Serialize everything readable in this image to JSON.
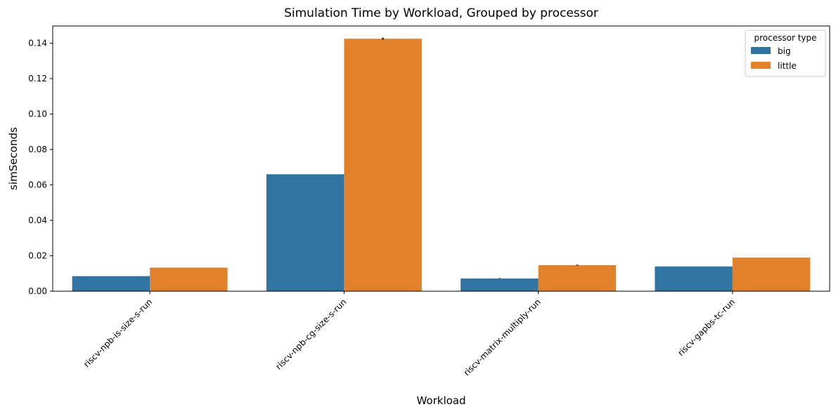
{
  "chart_data": {
    "type": "bar",
    "title": "Simulation Time by Workload, Grouped by processor",
    "xlabel": "Workload",
    "ylabel": "simSeconds",
    "categories": [
      "riscv-npb-is-size-s-run",
      "riscv-npb-cg-size-s-run",
      "riscv-matrix-multiply-run",
      "riscv-gapbs-tc-run"
    ],
    "series": [
      {
        "name": "big",
        "color": "#3274a1",
        "values": [
          0.0085,
          0.066,
          0.0072,
          0.014
        ],
        "error": [
          0,
          0,
          0.0004,
          0
        ]
      },
      {
        "name": "little",
        "color": "#e1812c",
        "values": [
          0.0133,
          0.1425,
          0.0147,
          0.019
        ],
        "error": [
          0,
          0.0012,
          0.0006,
          0
        ]
      }
    ],
    "yticks": [
      0.0,
      0.02,
      0.04,
      0.06,
      0.08,
      0.1,
      0.12,
      0.14
    ],
    "ytick_labels": [
      "0.00",
      "0.02",
      "0.04",
      "0.06",
      "0.08",
      "0.10",
      "0.12",
      "0.14"
    ],
    "ylim": [
      0,
      0.1497
    ],
    "legend": {
      "title": "processor type",
      "position": "top-right"
    },
    "grid": false
  }
}
